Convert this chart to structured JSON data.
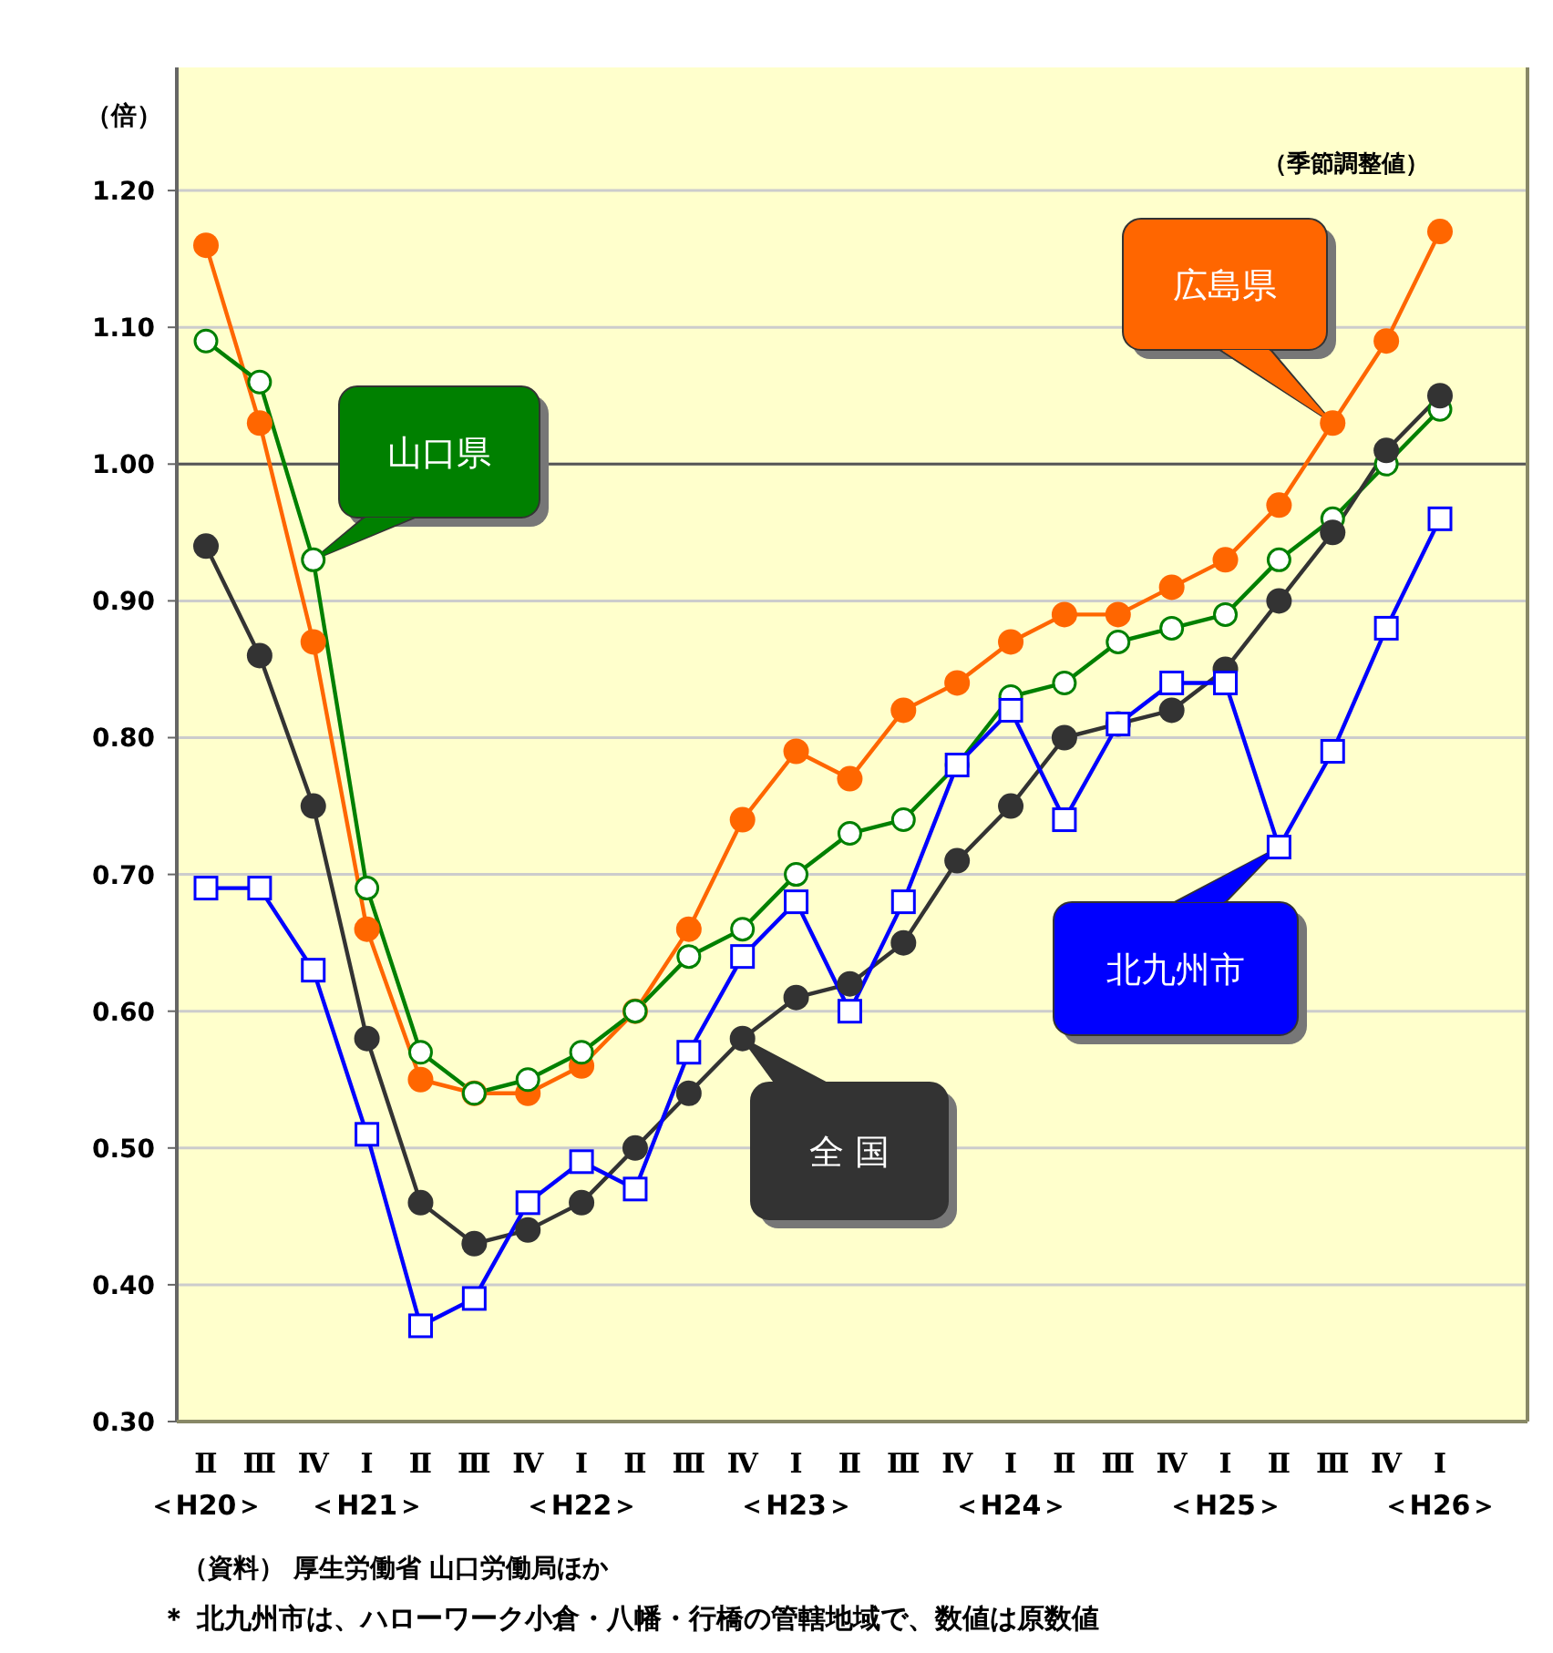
{
  "chart_data": {
    "type": "line",
    "ylabel": "（倍）",
    "categories": [
      "Ⅱ\n＜H20＞",
      "Ⅲ",
      "Ⅳ",
      "Ⅰ\n＜H21＞",
      "Ⅱ",
      "Ⅲ",
      "Ⅳ",
      "Ⅰ\n＜H22＞",
      "Ⅱ",
      "Ⅲ",
      "Ⅳ",
      "Ⅰ\n＜H23＞",
      "Ⅱ",
      "Ⅲ",
      "Ⅳ",
      "Ⅰ\n＜H24＞",
      "Ⅱ",
      "Ⅲ",
      "Ⅳ",
      "Ⅰ\n＜H25＞",
      "Ⅱ",
      "Ⅲ",
      "Ⅳ",
      "Ⅰ\n＜H26＞"
    ],
    "series": [
      {
        "name": "広島県",
        "color": "#ff6600",
        "marker": "circle",
        "values": [
          1.16,
          1.03,
          0.87,
          0.66,
          0.55,
          0.54,
          0.54,
          0.56,
          0.6,
          0.66,
          0.74,
          0.79,
          0.77,
          0.82,
          0.84,
          0.87,
          0.89,
          0.89,
          0.91,
          0.93,
          0.97,
          1.03,
          1.09,
          1.17
        ]
      },
      {
        "name": "山口県",
        "color": "#008000",
        "marker": "circle",
        "values": [
          1.09,
          1.06,
          0.93,
          0.69,
          0.57,
          0.54,
          0.55,
          0.57,
          0.6,
          0.64,
          0.66,
          0.7,
          0.73,
          0.74,
          0.78,
          0.83,
          0.84,
          0.87,
          0.88,
          0.89,
          0.93,
          0.96,
          1.0,
          1.04
        ]
      },
      {
        "name": "全 国",
        "color": "#333333",
        "marker": "circle",
        "values": [
          0.94,
          0.86,
          0.75,
          0.58,
          0.46,
          0.43,
          0.44,
          0.46,
          0.5,
          0.54,
          0.58,
          0.61,
          0.62,
          0.65,
          0.71,
          0.75,
          0.8,
          0.81,
          0.82,
          0.85,
          0.9,
          0.95,
          1.01,
          1.05
        ]
      },
      {
        "name": "北九州市",
        "color": "#0000ff",
        "marker": "square",
        "values": [
          0.69,
          0.69,
          0.63,
          0.51,
          0.37,
          0.39,
          0.46,
          0.49,
          0.47,
          0.57,
          0.64,
          0.68,
          0.6,
          0.68,
          0.78,
          0.82,
          0.74,
          0.81,
          0.84,
          0.84,
          0.72,
          0.79,
          0.88,
          0.96
        ]
      }
    ],
    "ylim": [
      0.3,
      1.29
    ],
    "yticks": [
      {
        "value": 0.3,
        "label": "0.30"
      },
      {
        "value": 0.4,
        "label": "0.40"
      },
      {
        "value": 0.5,
        "label": "0.50"
      },
      {
        "value": 0.6,
        "label": "0.60"
      },
      {
        "value": 0.7,
        "label": "0.70"
      },
      {
        "value": 0.8,
        "label": "0.80"
      },
      {
        "value": 0.9,
        "label": "0.90"
      },
      {
        "value": 1.0,
        "label": "1.00"
      },
      {
        "value": 1.1,
        "label": "1.10"
      },
      {
        "value": 1.2,
        "label": "1.20"
      }
    ],
    "grid": "y",
    "legend": false,
    "line_style": "solid",
    "ref_lines": [
      {
        "axis": "y",
        "value": 1.0,
        "color": "#555555"
      }
    ],
    "annotations": [
      "（季節調整値）",
      "（資料） 厚生労働省 山口労働局ほか",
      "＊ 北九州市は、ハローワーク小倉・八幡・行橋の管轄地域で、数値は原数値"
    ]
  }
}
